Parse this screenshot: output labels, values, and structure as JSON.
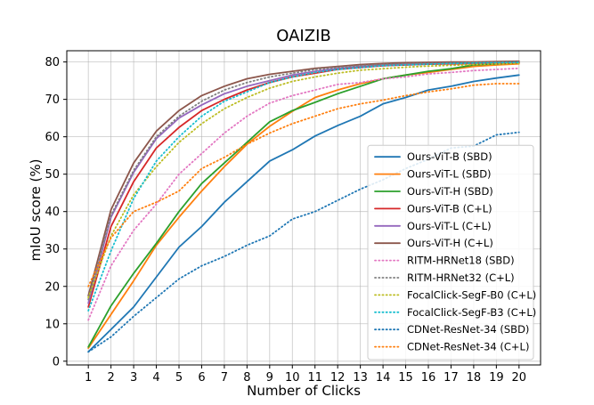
{
  "chart_data": {
    "type": "line",
    "title": "OAIZIB",
    "xlabel": "Number of Clicks",
    "ylabel": "mIoU score (%)",
    "x": [
      1,
      2,
      3,
      4,
      5,
      6,
      7,
      8,
      9,
      10,
      11,
      12,
      13,
      14,
      15,
      16,
      17,
      18,
      19,
      20
    ],
    "xlim": [
      0.05,
      20.95
    ],
    "ylim": [
      -1,
      83
    ],
    "yticks": [
      0,
      10,
      20,
      30,
      40,
      50,
      60,
      70,
      80
    ],
    "grid": true,
    "legend_position": "lower-right",
    "series": [
      {
        "name": "Ours-ViT-B (SBD)",
        "color": "#1f77b4",
        "style": "solid",
        "values": [
          2.5,
          8.5,
          14.5,
          22.5,
          30.5,
          36,
          42.5,
          48,
          53.5,
          56.5,
          60.2,
          63,
          65.5,
          68.8,
          70.5,
          72.5,
          73.5,
          74.8,
          75.7,
          76.5
        ]
      },
      {
        "name": "Ours-ViT-L (SBD)",
        "color": "#ff7f0e",
        "style": "solid",
        "values": [
          3.5,
          12.5,
          21.5,
          31,
          38.5,
          45.5,
          52,
          58,
          62.8,
          66.8,
          70.5,
          72.5,
          74.2,
          75.5,
          76.5,
          77.2,
          78,
          78.8,
          79.2,
          79.5
        ]
      },
      {
        "name": "Ours-ViT-H (SBD)",
        "color": "#2ca02c",
        "style": "solid",
        "values": [
          3.8,
          14.8,
          23.5,
          31.5,
          40,
          47.5,
          53,
          58.5,
          64,
          67,
          69.2,
          71.5,
          73.5,
          75.5,
          76.5,
          77.5,
          78.2,
          79.2,
          79.5,
          79.8
        ]
      },
      {
        "name": "Ours-ViT-B (C+L)",
        "color": "#d62728",
        "style": "solid",
        "values": [
          14.5,
          36,
          48,
          57,
          62.5,
          67,
          70,
          72.5,
          74.5,
          76,
          77,
          78,
          78.5,
          79,
          79.2,
          79.4,
          79.5,
          79.6,
          79.7,
          79.8
        ]
      },
      {
        "name": "Ours-ViT-L (C+L)",
        "color": "#9467bd",
        "style": "solid",
        "values": [
          15.5,
          38.5,
          50.5,
          59.5,
          65,
          68.5,
          71.5,
          73.5,
          75,
          76.5,
          77.5,
          78.3,
          78.8,
          79.2,
          79.4,
          79.6,
          79.7,
          79.8,
          79.9,
          80
        ]
      },
      {
        "name": "Ours-ViT-H (C+L)",
        "color": "#8c564b",
        "style": "solid",
        "values": [
          17.5,
          40.5,
          53,
          61.5,
          67,
          71,
          73.5,
          75.5,
          76.7,
          77.5,
          78.3,
          78.8,
          79.3,
          79.6,
          79.8,
          79.9,
          80,
          80,
          80.1,
          80.2
        ]
      },
      {
        "name": "RITM-HRNet18 (SBD)",
        "color": "#e377c2",
        "style": "dotted",
        "values": [
          11,
          25.5,
          35,
          42,
          50,
          55.5,
          61,
          65.5,
          69,
          71,
          72.5,
          74,
          74.5,
          75.5,
          76,
          76.8,
          77.2,
          77.7,
          78,
          78.3
        ]
      },
      {
        "name": "RITM-HRNet32 (C+L)",
        "color": "#7f7f7f",
        "style": "dotted",
        "values": [
          16.5,
          39,
          51,
          60,
          65.5,
          69.5,
          72.5,
          74.5,
          76,
          77,
          78,
          78.5,
          79,
          79.3,
          79.5,
          79.6,
          79.7,
          79.8,
          79.9,
          80
        ]
      },
      {
        "name": "FocalClick-SegF-B0 (C+L)",
        "color": "#bcbd22",
        "style": "dotted",
        "values": [
          17,
          33.5,
          44.5,
          52,
          58.5,
          63.5,
          67.5,
          70.5,
          73,
          74.8,
          76,
          77,
          77.8,
          78.2,
          78.6,
          78.9,
          79.1,
          79.3,
          79.5,
          79.6
        ]
      },
      {
        "name": "FocalClick-SegF-B3 (C+L)",
        "color": "#17becf",
        "style": "dotted",
        "values": [
          13.5,
          29.5,
          43.5,
          53.5,
          60,
          65.5,
          69.5,
          72,
          74.5,
          76,
          77.2,
          78,
          78.5,
          79,
          79.2,
          79.4,
          79.6,
          79.7,
          79.8,
          79.9
        ]
      },
      {
        "name": "CDNet-ResNet-34 (SBD)",
        "color": "#1f77b4",
        "style": "dotted",
        "values": [
          2.5,
          6.5,
          12,
          17,
          22,
          25.5,
          28,
          31,
          33.5,
          38,
          40,
          43,
          46,
          48.5,
          51.5,
          54,
          57,
          57.5,
          60.5,
          61.2
        ]
      },
      {
        "name": "CDNet-ResNet-34 (C+L)",
        "color": "#ff7f0e",
        "style": "dotted",
        "values": [
          20,
          33,
          40,
          42.5,
          45.5,
          51.5,
          54.5,
          58,
          61,
          63.5,
          65.5,
          67.5,
          68.8,
          69.8,
          71,
          72,
          72.8,
          73.8,
          74.2,
          74.2
        ]
      }
    ]
  }
}
